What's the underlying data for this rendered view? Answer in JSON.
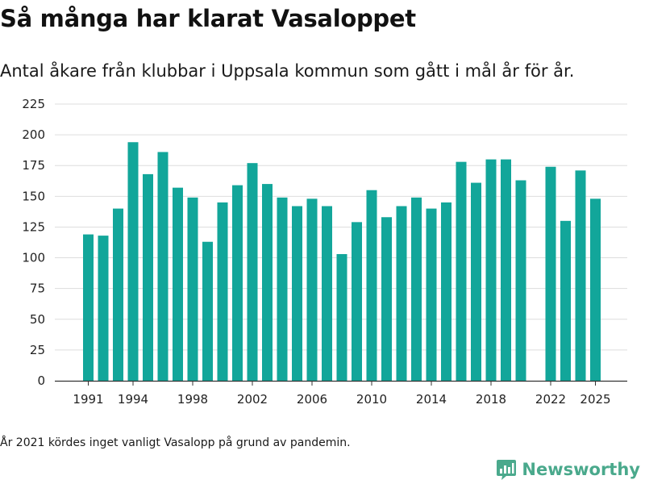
{
  "header": {
    "title": "Så många har klarat Vasaloppet",
    "subtitle": "Antal åkare från klubbar i Uppsala kommun som gått i mål år för år."
  },
  "footnote": "År 2021 kördes inget vanligt Vasalopp på grund av pandemin.",
  "brand": {
    "name": "Newsworthy",
    "icon": "newsworthy-logo-icon"
  },
  "colors": {
    "bar": "#12a69a",
    "grid": "#dddddd",
    "axis": "#333333",
    "brand": "#4aa98c"
  },
  "chart_data": {
    "type": "bar",
    "title": "Så många har klarat Vasaloppet",
    "xlabel": "",
    "ylabel": "",
    "ylim": [
      0,
      225
    ],
    "yticks": [
      0,
      25,
      50,
      75,
      100,
      125,
      150,
      175,
      200,
      225
    ],
    "xticks": [
      "1991",
      "1994",
      "1998",
      "2002",
      "2006",
      "2010",
      "2014",
      "2018",
      "2022",
      "2025"
    ],
    "grid": true,
    "categories": [
      "1991",
      "1992",
      "1993",
      "1994",
      "1995",
      "1996",
      "1997",
      "1998",
      "1999",
      "2000",
      "2001",
      "2002",
      "2003",
      "2004",
      "2005",
      "2006",
      "2007",
      "2008",
      "2009",
      "2010",
      "2011",
      "2012",
      "2013",
      "2014",
      "2015",
      "2016",
      "2017",
      "2018",
      "2019",
      "2020",
      "2021",
      "2022",
      "2023",
      "2024",
      "2025"
    ],
    "values": [
      119,
      118,
      140,
      194,
      168,
      186,
      157,
      149,
      113,
      145,
      159,
      177,
      160,
      149,
      142,
      148,
      142,
      103,
      129,
      155,
      133,
      142,
      149,
      140,
      145,
      178,
      161,
      180,
      180,
      163,
      null,
      174,
      130,
      171,
      148
    ]
  }
}
